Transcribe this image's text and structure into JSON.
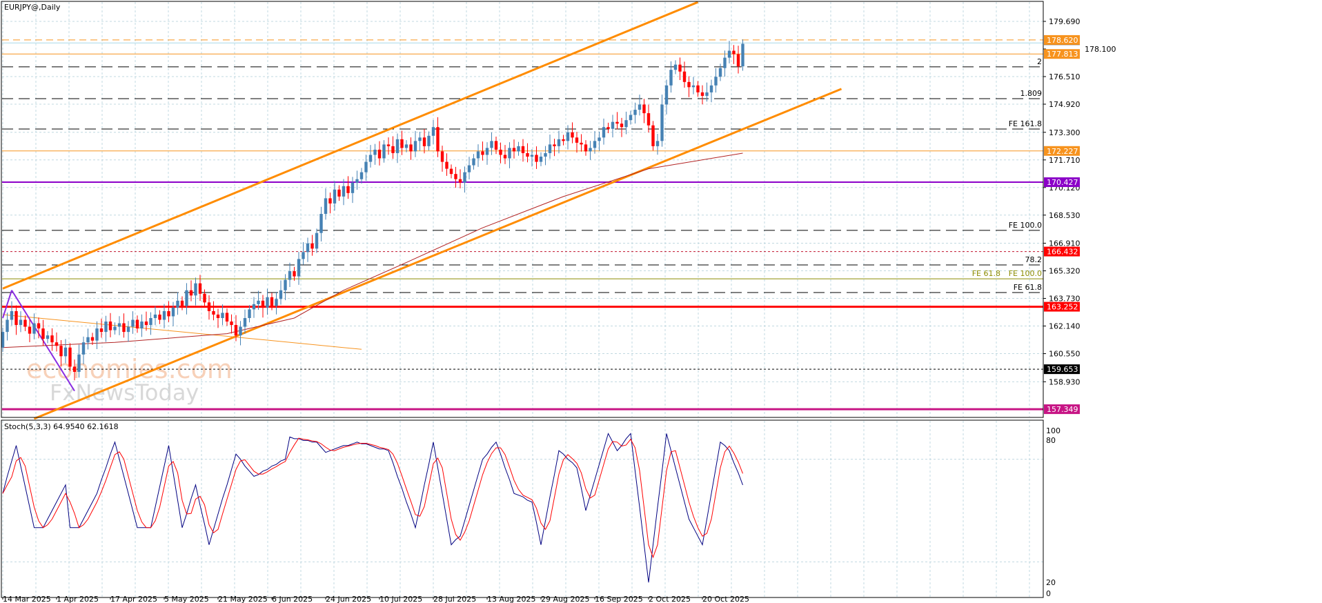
{
  "header": {
    "title": "EURJPY@,Daily"
  },
  "watermark": {
    "line1": "economies.com",
    "line2": "FxNewsToday"
  },
  "colors": {
    "bull": "#4682b4",
    "bear": "#ff0000",
    "grid": "#c0d8e0",
    "ma": "#b22222",
    "stoch_k": "#000080",
    "stoch_d": "#ff0000",
    "channel": "#ff8c00"
  },
  "chart_data": {
    "type": "candlestick",
    "symbol": "EURJPY@",
    "timeframe": "Daily",
    "grid": true,
    "y_ticks": [
      179.69,
      176.51,
      174.92,
      173.3,
      171.71,
      170.12,
      168.53,
      166.91,
      165.32,
      163.73,
      162.14,
      160.55,
      158.93
    ],
    "y_tick_hidden": "178.100",
    "x_tick_labels": [
      "14 Mar 2025",
      "1 Apr 2025",
      "17 Apr 2025",
      "5 May 2025",
      "21 May 2025",
      "6 Jun 2025",
      "24 Jun 2025",
      "10 Jul 2025",
      "28 Jul 2025",
      "13 Aug 2025",
      "29 Aug 2025",
      "16 Sep 2025",
      "2 Oct 2025",
      "20 Oct 2025"
    ],
    "x_tick_every_bars": 12,
    "close": [
      161.8,
      162.5,
      163.0,
      162.2,
      162.5,
      162.1,
      161.7,
      162.3,
      162.0,
      161.4,
      161.6,
      161.2,
      161.0,
      160.4,
      160.9,
      159.8,
      159.5,
      160.5,
      161.2,
      161.5,
      161.3,
      162.0,
      161.8,
      162.4,
      161.9,
      162.1,
      162.3,
      161.8,
      162.1,
      162.5,
      162.0,
      162.4,
      162.2,
      162.6,
      162.8,
      162.5,
      163.0,
      162.7,
      163.2,
      163.6,
      163.3,
      164.2,
      163.9,
      164.6,
      164.0,
      163.5,
      163.0,
      162.8,
      162.6,
      162.9,
      162.4,
      162.2,
      161.6,
      162.1,
      162.6,
      163.1,
      163.4,
      163.6,
      163.2,
      163.8,
      163.3,
      163.7,
      164.2,
      164.8,
      165.3,
      165.0,
      166.0,
      166.4,
      166.9,
      166.6,
      167.5,
      168.6,
      169.5,
      169.2,
      170.0,
      169.6,
      170.2,
      169.8,
      170.4,
      170.6,
      171.0,
      171.6,
      172.0,
      172.3,
      171.8,
      172.6,
      172.5,
      172.1,
      172.9,
      172.4,
      172.6,
      172.2,
      172.8,
      173.0,
      172.5,
      173.1,
      173.6,
      172.2,
      171.6,
      171.2,
      170.9,
      170.6,
      170.4,
      171.0,
      171.4,
      171.8,
      172.2,
      172.0,
      172.4,
      172.8,
      172.3,
      172.0,
      171.8,
      172.4,
      172.2,
      172.5,
      172.1,
      171.9,
      172.0,
      171.6,
      171.9,
      172.1,
      172.6,
      172.5,
      172.9,
      172.8,
      173.3,
      173.0,
      172.7,
      172.6,
      172.2,
      172.4,
      172.8,
      173.0,
      173.6,
      173.5,
      173.9,
      173.8,
      173.6,
      174.0,
      174.3,
      174.6,
      174.9,
      174.4,
      173.7,
      172.5,
      172.8,
      174.9,
      176.0,
      176.9,
      177.2,
      176.8,
      176.2,
      175.9,
      176.0,
      175.6,
      175.4,
      175.6,
      176.0,
      176.5,
      177.0,
      177.6,
      178.0,
      177.8,
      177.1,
      178.4
    ],
    "first_open": 160.9,
    "moving_average": {
      "bars": [
        0,
        25,
        50,
        65,
        76,
        90,
        107,
        125,
        144,
        165
      ],
      "values": [
        160.9,
        161.2,
        161.7,
        162.6,
        164.2,
        165.8,
        167.8,
        169.6,
        171.2,
        172.1
      ]
    },
    "levels": [
      {
        "price": 178.62,
        "label": "178.620",
        "color": "#f7931e",
        "style": "dashed",
        "width": 1,
        "tag": "box"
      },
      {
        "price": 178.45,
        "label": "",
        "color": "#a8d8e8",
        "style": "solid",
        "width": 1,
        "tag": "none"
      },
      {
        "price": 177.813,
        "label": "177.813",
        "color": "#f7931e",
        "style": "solid",
        "width": 1,
        "tag": "box"
      },
      {
        "price": 177.07,
        "label": "2",
        "color": "#000000",
        "style": "longdash",
        "width": 1,
        "tag": "text"
      },
      {
        "price": 175.24,
        "label": "1.809",
        "color": "#000000",
        "style": "longdash",
        "width": 1,
        "tag": "text"
      },
      {
        "price": 173.49,
        "label": "FE 161.8",
        "color": "#000000",
        "style": "longdash",
        "width": 1,
        "tag": "text"
      },
      {
        "price": 172.227,
        "label": "172.227",
        "color": "#f7931e",
        "style": "solid",
        "width": 1,
        "tag": "box"
      },
      {
        "price": 170.427,
        "label": "170.427",
        "color": "#8b00c8",
        "style": "solid",
        "width": 2,
        "tag": "box"
      },
      {
        "price": 167.65,
        "label": "FE 100.0",
        "color": "#000000",
        "style": "longdash",
        "width": 1,
        "tag": "text"
      },
      {
        "price": 166.432,
        "label": "166.432",
        "color": "#c0102a",
        "style": "dotted",
        "width": 1,
        "tag": "box",
        "box_color": "#ff0000"
      },
      {
        "price": 165.66,
        "label": "78.2",
        "color": "#000000",
        "style": "longdash",
        "width": 1,
        "tag": "text"
      },
      {
        "price": 164.86,
        "label": "FE 100.0",
        "color": "#8b8b00",
        "style": "solid",
        "width": 1,
        "tag": "text",
        "overlap": "FE 61.8"
      },
      {
        "price": 164.07,
        "label": "FE 61.8",
        "color": "#000000",
        "style": "longdash",
        "width": 1,
        "tag": "text"
      },
      {
        "price": 163.252,
        "label": "163.252",
        "color": "#ff0000",
        "style": "solid",
        "width": 3,
        "tag": "box"
      },
      {
        "price": 159.653,
        "label": "159.653",
        "color": "#000000",
        "style": "dotted",
        "width": 1,
        "tag": "box"
      },
      {
        "price": 157.349,
        "label": "157.349",
        "color": "#c71585",
        "style": "solid",
        "width": 3,
        "tag": "box"
      }
    ],
    "trendlines": [
      {
        "name": "channel-upper",
        "from": [
          0,
          164.3
        ],
        "to": [
          155,
          180.8
        ],
        "color": "#ff8c00",
        "width": 3
      },
      {
        "name": "channel-lower",
        "from": [
          7,
          156.8
        ],
        "to": [
          187,
          175.8
        ],
        "color": "#ff8c00",
        "width": 3
      },
      {
        "name": "thin-trendline",
        "from": [
          0,
          162.8
        ],
        "to": [
          80,
          160.8
        ],
        "color": "#f7931e",
        "width": 1
      },
      {
        "name": "zigzag-a",
        "from": [
          0,
          162.6
        ],
        "to": [
          2,
          164.2
        ],
        "color": "#8a2be2",
        "width": 2
      },
      {
        "name": "zigzag-b",
        "from": [
          2,
          164.2
        ],
        "to": [
          16,
          158.4
        ],
        "color": "#8a2be2",
        "width": 2
      }
    ],
    "stochastic": {
      "label": "Stoch(5,3,3) 64.9540 62.1618",
      "levels": [
        "100",
        "80",
        "20",
        "0"
      ],
      "k": [
        60,
        70,
        79,
        88,
        76,
        64,
        52,
        40,
        40,
        40,
        45,
        50,
        55,
        60,
        65,
        40,
        40,
        40,
        45,
        50,
        55,
        60,
        68,
        75,
        83,
        90,
        80,
        70,
        60,
        50,
        40,
        40,
        40,
        40,
        52,
        64,
        76,
        88,
        72,
        56,
        40,
        48,
        57,
        65,
        53,
        42,
        30,
        39,
        48,
        57,
        65,
        74,
        83,
        80,
        76,
        73,
        70,
        71,
        73,
        74,
        76,
        77,
        79,
        80,
        93,
        92,
        92,
        91,
        91,
        90,
        90,
        87,
        84,
        85,
        86,
        87,
        88,
        88,
        89,
        90,
        89,
        89,
        88,
        87,
        86,
        86,
        85,
        78,
        70,
        63,
        55,
        48,
        40,
        52,
        65,
        77,
        90,
        75,
        60,
        45,
        30,
        33,
        35,
        44,
        53,
        62,
        71,
        80,
        83,
        87,
        90,
        83,
        75,
        68,
        60,
        59,
        58,
        56,
        55,
        43,
        30,
        44,
        58,
        71,
        85,
        83,
        80,
        78,
        75,
        63,
        50,
        59,
        68,
        77,
        86,
        95,
        90,
        85,
        88,
        92,
        95,
        73,
        52,
        30,
        8,
        30,
        52,
        73,
        95,
        85,
        75,
        65,
        55,
        45,
        40,
        35,
        30,
        45,
        60,
        75,
        90,
        88,
        85,
        78,
        72,
        64.954
      ]
    }
  }
}
